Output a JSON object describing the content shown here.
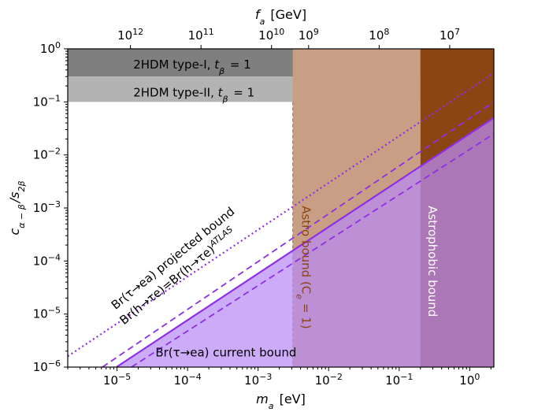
{
  "chart_data": {
    "type": "area",
    "xlabel": "m_a [eV]",
    "ylabel": "c_{α−β}/s_{2β}",
    "x2label": "f_a [GeV]",
    "xscale": "log",
    "yscale": "log",
    "xlim": [
      2e-06,
      2.2
    ],
    "ylim": [
      1e-06,
      1
    ],
    "grid": false,
    "x_ticks": [
      {
        "value": 1e-05,
        "label": "10",
        "exp": "−5"
      },
      {
        "value": 0.0001,
        "label": "10",
        "exp": "−4"
      },
      {
        "value": 0.001,
        "label": "10",
        "exp": "−3"
      },
      {
        "value": 0.01,
        "label": "10",
        "exp": "−2"
      },
      {
        "value": 0.1,
        "label": "10",
        "exp": "−1"
      },
      {
        "value": 1,
        "label": "10",
        "exp": "0"
      }
    ],
    "y_ticks": [
      {
        "value": 1e-06,
        "label": "10",
        "exp": "−6"
      },
      {
        "value": 1e-05,
        "label": "10",
        "exp": "−5"
      },
      {
        "value": 0.0001,
        "label": "10",
        "exp": "−4"
      },
      {
        "value": 0.001,
        "label": "10",
        "exp": "−3"
      },
      {
        "value": 0.01,
        "label": "10",
        "exp": "−2"
      },
      {
        "value": 0.1,
        "label": "10",
        "exp": "−1"
      },
      {
        "value": 1,
        "label": "10",
        "exp": "0"
      }
    ],
    "top_ticks": [
      {
        "x_value": 4.6e-07,
        "label": "10",
        "exp": "12"
      },
      {
        "x_value": 4.6e-06,
        "label": "10",
        "exp": "11"
      },
      {
        "x_value": 4.6e-05,
        "label": "10",
        "exp": "10"
      },
      {
        "x_value": 0.00046,
        "label": "10",
        "exp": "9"
      },
      {
        "x_value": 0.0046,
        "label": "10",
        "exp": "8"
      },
      {
        "x_value": 0.046,
        "label": "10",
        "exp": "7"
      }
    ],
    "top_ticks_mapped": [
      {
        "x_value": 1.55e-05,
        "label": "10",
        "exp": "12"
      },
      {
        "x_value": 0.000155,
        "label": "10",
        "exp": "11"
      },
      {
        "x_value": 0.00155,
        "label": "10",
        "exp": "10"
      },
      {
        "x_value": 0.0052,
        "label": "10",
        "exp": "9"
      },
      {
        "x_value": 0.052,
        "label": "10",
        "exp": "8"
      },
      {
        "x_value": 0.52,
        "label": "10",
        "exp": "7"
      }
    ],
    "regions": [
      {
        "name": "2HDM type-I",
        "label": "2HDM type-I, ",
        "label_sub": "t",
        "sub": "β",
        "label_tail": " = 1",
        "y_range": [
          0.3,
          1
        ],
        "color": "#7f7f7f",
        "label_pos": [
          1.7e-05,
          0.52
        ]
      },
      {
        "name": "2HDM type-II",
        "label": "2HDM type-II, ",
        "label_sub": "t",
        "sub": "β",
        "label_tail": " = 1",
        "y_range": [
          0.1,
          0.3
        ],
        "color": "#b3b3b3",
        "label_pos": [
          1.7e-05,
          0.155
        ]
      },
      {
        "name": "Astro bound",
        "label": "Astro bound  (C",
        "label_sub2": "e",
        "label_tail": " = 1)",
        "x_range": [
          0.0031,
          0.2
        ],
        "color": "#c89f85",
        "label_color": "#8b4513",
        "label_pos": [
          0.0042,
          0.0011
        ]
      },
      {
        "name": "Astrophobic bound",
        "label": "Astrophobic bound",
        "x_range": [
          0.2,
          2.2
        ],
        "color": "#8b4513",
        "label_color": "#ffffff",
        "label_pos": [
          0.26,
          0.0011
        ]
      }
    ],
    "series": [
      {
        "name": "Br(τ→ea) current bound",
        "label": "Br(τ→ea) current bound",
        "style": "solid",
        "color": "#8e2ee6",
        "fill": "#b98af5",
        "points": [
          [
            9.8e-06,
            1e-06
          ],
          [
            2.2,
            0.05
          ]
        ],
        "label_pos": [
          0.00035,
          1.6e-06
        ]
      },
      {
        "name": "Br(h→τe)=Br(h→τe)^ATLAS upper",
        "style": "dashed",
        "color": "#8e2ee6",
        "points": [
          [
            6.2e-06,
            1e-06
          ],
          [
            2.2,
            0.1
          ]
        ]
      },
      {
        "name": "Br(h→τe)=Br(h→τe)^ATLAS lower",
        "style": "dashed",
        "color": "#8e2ee6",
        "points": [
          [
            1.6e-05,
            1e-06
          ],
          [
            2.2,
            0.025
          ]
        ]
      },
      {
        "name": "Br(τ→ea) projected bound",
        "style": "dotted",
        "color": "#8e2ee6",
        "points": [
          [
            2e-06,
            1.6e-06
          ],
          [
            2.2,
            0.35
          ]
        ]
      }
    ],
    "annotations": [
      {
        "text": "Br(h→τe)=Br(h→τe)",
        "sup": "ATLAS",
        "color": "#000000",
        "pos": [
          1.25e-05,
          6.2e-06
        ],
        "angle": -39
      },
      {
        "text": "Br(τ→ea) projected bound",
        "color": "#000000",
        "pos": [
          9.5e-06,
          1.2e-05
        ],
        "angle": -39
      }
    ]
  }
}
